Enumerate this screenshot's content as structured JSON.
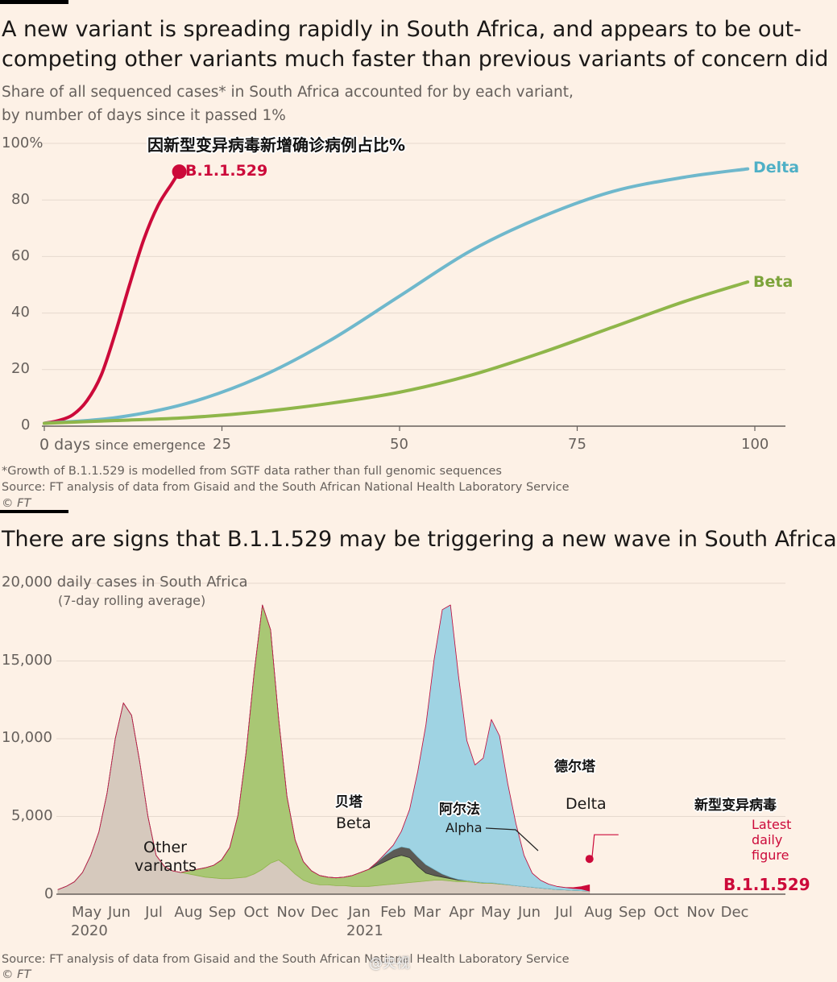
{
  "chart1": {
    "title": "A new variant is spreading rapidly in South Africa, and appears to be out-competing other variants much faster than previous variants of concern did",
    "title_line1": "A new variant is spreading rapidly in South Africa, and appears to be out-",
    "title_line2": "competing other variants much faster than previous variants of concern did",
    "subtitle_line1": "Share of all sequenced cases* in South Africa accounted for by each variant,",
    "subtitle_line2": "by number of days since it passed 1%",
    "overlay_zh": "因新型变异病毒新增确诊病例占比%",
    "y_ticks": [
      "100%",
      "80",
      "60",
      "40",
      "20",
      "0"
    ],
    "x_first_tick": "0",
    "x_first_tick_days": "days",
    "x_first_tick_suffix": "since emergence",
    "x_ticks": [
      "25",
      "50",
      "75",
      "100"
    ],
    "footnote": "*Growth of B.1.1.529 is modelled from SGTF data rather than full genomic sequences",
    "source": "Source: FT analysis of data from Gisaid and the South African National Health Laboratory Service",
    "copyright": "© FT",
    "colors": {
      "b11529": "#cc0a3a",
      "delta": "#6fb8cc",
      "beta": "#8fb64a"
    }
  },
  "chart_data": [
    {
      "type": "line",
      "title": "A new variant is spreading rapidly in South Africa, and appears to be out-competing other variants much faster than previous variants of concern did",
      "xlabel": "days since emergence",
      "ylabel": "",
      "xlim": [
        0,
        100
      ],
      "ylim": [
        0,
        100
      ],
      "grid": true,
      "series": [
        {
          "name": "B.1.1.529",
          "x": [
            0,
            2,
            4,
            6,
            8,
            10,
            12,
            14,
            16,
            18,
            19
          ],
          "y": [
            1,
            2,
            4,
            9,
            18,
            33,
            50,
            66,
            78,
            86,
            90
          ]
        },
        {
          "name": "Delta",
          "x": [
            0,
            10,
            20,
            30,
            40,
            50,
            60,
            70,
            80,
            90,
            99
          ],
          "y": [
            1,
            3,
            8,
            17,
            30,
            46,
            62,
            74,
            83,
            88,
            91
          ]
        },
        {
          "name": "Beta",
          "x": [
            0,
            10,
            20,
            30,
            40,
            50,
            60,
            70,
            80,
            90,
            99
          ],
          "y": [
            1,
            2,
            3,
            5,
            8,
            12,
            18,
            26,
            35,
            44,
            51
          ]
        }
      ]
    },
    {
      "type": "area",
      "title": "There are signs that B.1.1.529 may be triggering a new wave in South Africa",
      "ylabel": "daily cases in South Africa (7-day rolling average)",
      "ylim": [
        0,
        20000
      ],
      "grid": true,
      "stacked": true,
      "x_start": "2020-04-15",
      "x_step_days": 7,
      "series": [
        {
          "name": "Other variants",
          "values": [
            300,
            500,
            800,
            1400,
            2500,
            4000,
            6500,
            10000,
            12300,
            11500,
            8500,
            5000,
            2500,
            1800,
            1500,
            1400,
            1300,
            1200,
            1100,
            1050,
            1000,
            1000,
            1050,
            1100,
            1300,
            1600,
            2000,
            2200,
            1800,
            1300,
            900,
            700,
            600,
            600,
            550,
            550,
            500,
            500,
            500,
            550,
            600,
            650,
            700,
            750,
            800,
            850,
            900,
            900,
            850,
            800,
            800,
            750,
            700,
            700,
            650,
            600,
            550,
            500,
            450,
            400,
            350,
            300,
            280,
            250,
            230,
            200
          ]
        },
        {
          "name": "Beta",
          "values": [
            0,
            0,
            0,
            0,
            0,
            0,
            0,
            0,
            0,
            0,
            0,
            0,
            0,
            0,
            0,
            0,
            200,
            400,
            600,
            800,
            1200,
            2000,
            4000,
            8000,
            13000,
            17000,
            15000,
            9000,
            4500,
            2200,
            1200,
            800,
            600,
            500,
            500,
            550,
            700,
            900,
            1100,
            1300,
            1500,
            1700,
            1800,
            1600,
            1000,
            500,
            300,
            200,
            150,
            100,
            80,
            60,
            50,
            40,
            30,
            20,
            0,
            0,
            0,
            0,
            0,
            0,
            0,
            0,
            0,
            0
          ]
        },
        {
          "name": "Alpha",
          "values": [
            0,
            0,
            0,
            0,
            0,
            0,
            0,
            0,
            0,
            0,
            0,
            0,
            0,
            0,
            0,
            0,
            0,
            0,
            0,
            0,
            0,
            0,
            0,
            0,
            0,
            0,
            0,
            0,
            0,
            0,
            0,
            0,
            0,
            0,
            0,
            0,
            0,
            0,
            0,
            200,
            400,
            500,
            550,
            600,
            600,
            550,
            400,
            200,
            100,
            50,
            0,
            0,
            0,
            0,
            0,
            0,
            0,
            0,
            0,
            0,
            0,
            0,
            0,
            0,
            0,
            0
          ]
        },
        {
          "name": "Delta",
          "values": [
            0,
            0,
            0,
            0,
            0,
            0,
            0,
            0,
            0,
            0,
            0,
            0,
            0,
            0,
            0,
            0,
            0,
            0,
            0,
            0,
            0,
            0,
            0,
            0,
            0,
            0,
            0,
            0,
            0,
            0,
            0,
            0,
            0,
            0,
            0,
            0,
            0,
            0,
            0,
            0,
            100,
            300,
            1000,
            2500,
            5500,
            9000,
            13500,
            17000,
            17500,
            13000,
            9000,
            7500,
            8000,
            10500,
            9500,
            6500,
            4000,
            2000,
            900,
            500,
            300,
            200,
            150,
            120,
            100,
            0
          ]
        },
        {
          "name": "B.1.1.529",
          "values": [
            0,
            0,
            0,
            0,
            0,
            0,
            0,
            0,
            0,
            0,
            0,
            0,
            0,
            0,
            0,
            0,
            0,
            0,
            0,
            0,
            0,
            0,
            0,
            0,
            0,
            0,
            0,
            0,
            0,
            0,
            0,
            0,
            0,
            0,
            0,
            0,
            0,
            0,
            0,
            0,
            0,
            0,
            0,
            0,
            0,
            0,
            0,
            0,
            0,
            0,
            0,
            0,
            0,
            0,
            0,
            0,
            0,
            0,
            0,
            0,
            0,
            0,
            0,
            50,
            150,
            400
          ]
        }
      ],
      "latest_daily_figure": 2270
    }
  ],
  "chart2": {
    "title": "There are signs that B.1.1.529 may be triggering a new wave in South Africa",
    "y_ticks": [
      "20,000",
      "15,000",
      "10,000",
      "5,000",
      "0"
    ],
    "y_top_suffix": "daily cases in South Africa",
    "y_top_note": "(7-day rolling average)",
    "months": [
      "May",
      "Jun",
      "Jul",
      "Aug",
      "Sep",
      "Oct",
      "Nov",
      "Dec",
      "Jan",
      "Feb",
      "Mar",
      "Apr",
      "May",
      "Jun",
      "Jul",
      "Aug",
      "Sep",
      "Oct",
      "Nov",
      "Dec"
    ],
    "year_2020": "2020",
    "year_2021": "2021",
    "label_other_1": "Other",
    "label_other_2": "variants",
    "label_beta": "Beta",
    "label_beta_zh": "贝塔",
    "label_alpha": "Alpha",
    "label_alpha_zh": "阿尔法",
    "label_delta": "Delta",
    "label_delta_zh": "德尔塔",
    "label_new_zh": "新型变异病毒",
    "label_latest_1": "Latest",
    "label_latest_2": "daily",
    "label_latest_3": "figure",
    "label_b11529": "B.1.1.529",
    "source": "Source: FT analysis of data from Gisaid and the South African National Health Laboratory Service",
    "watermark": "@央视",
    "copyright": "© FT",
    "colors": {
      "other": "#d6c9bd",
      "beta": "#a9c774",
      "alpha": "#5c5a55",
      "delta": "#9fd3e3",
      "b11529": "#cc0a3a"
    }
  }
}
